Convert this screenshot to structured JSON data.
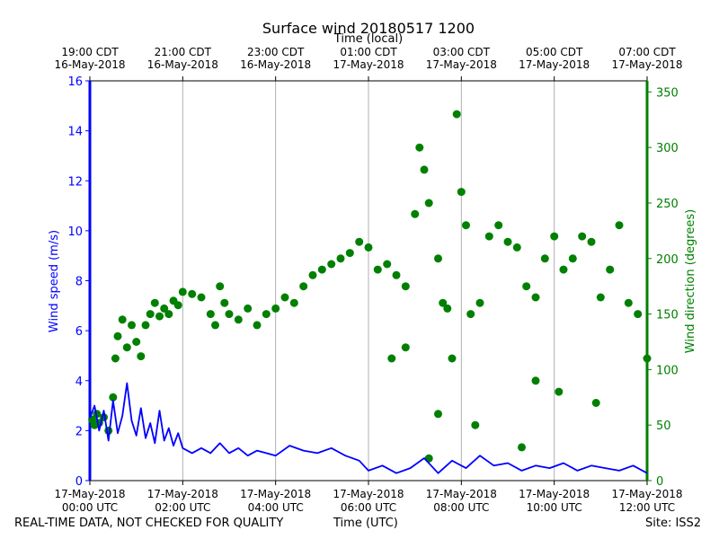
{
  "chart_data": {
    "type": "line+scatter",
    "title": "Surface wind 20180517 1200",
    "top_axis_label": "Time (local)",
    "xlabel": "Time (UTC)",
    "ylabel_left": "Wind speed (m/s)",
    "ylabel_right": "Wind direction (degrees)",
    "x_range_hours_utc": [
      0,
      12
    ],
    "ylim_left": [
      0,
      16
    ],
    "ylim_right": [
      0,
      360
    ],
    "left_ticks": [
      "0",
      "2",
      "4",
      "6",
      "8",
      "10",
      "12",
      "14",
      "16"
    ],
    "right_ticks": [
      "0",
      "50",
      "100",
      "150",
      "200",
      "250",
      "300",
      "350"
    ],
    "bottom_ticks": [
      {
        "line1": "17-May-2018",
        "line2": "00:00 UTC"
      },
      {
        "line1": "17-May-2018",
        "line2": "02:00 UTC"
      },
      {
        "line1": "17-May-2018",
        "line2": "04:00 UTC"
      },
      {
        "line1": "17-May-2018",
        "line2": "06:00 UTC"
      },
      {
        "line1": "17-May-2018",
        "line2": "08:00 UTC"
      },
      {
        "line1": "17-May-2018",
        "line2": "10:00 UTC"
      },
      {
        "line1": "17-May-2018",
        "line2": "12:00 UTC"
      }
    ],
    "top_ticks": [
      {
        "line1": "19:00 CDT",
        "line2": "16-May-2018"
      },
      {
        "line1": "21:00 CDT",
        "line2": "16-May-2018"
      },
      {
        "line1": "23:00 CDT",
        "line2": "16-May-2018"
      },
      {
        "line1": "01:00 CDT",
        "line2": "17-May-2018"
      },
      {
        "line1": "03:00 CDT",
        "line2": "17-May-2018"
      },
      {
        "line1": "05:00 CDT",
        "line2": "17-May-2018"
      },
      {
        "line1": "07:00 CDT",
        "line2": "17-May-2018"
      }
    ],
    "grid": "vertical",
    "series": [
      {
        "name": "Wind speed",
        "axis": "left",
        "style": "line",
        "color": "#0000ff",
        "points": [
          [
            0.0,
            2.5
          ],
          [
            0.1,
            3.0
          ],
          [
            0.2,
            2.0
          ],
          [
            0.3,
            2.8
          ],
          [
            0.4,
            1.6
          ],
          [
            0.5,
            3.2
          ],
          [
            0.6,
            1.9
          ],
          [
            0.7,
            2.6
          ],
          [
            0.8,
            3.9
          ],
          [
            0.9,
            2.4
          ],
          [
            1.0,
            1.8
          ],
          [
            1.1,
            2.9
          ],
          [
            1.2,
            1.7
          ],
          [
            1.3,
            2.3
          ],
          [
            1.4,
            1.5
          ],
          [
            1.5,
            2.8
          ],
          [
            1.6,
            1.6
          ],
          [
            1.7,
            2.1
          ],
          [
            1.8,
            1.4
          ],
          [
            1.9,
            1.9
          ],
          [
            2.0,
            1.3
          ],
          [
            2.2,
            1.1
          ],
          [
            2.4,
            1.3
          ],
          [
            2.6,
            1.1
          ],
          [
            2.8,
            1.5
          ],
          [
            3.0,
            1.1
          ],
          [
            3.2,
            1.3
          ],
          [
            3.4,
            1.0
          ],
          [
            3.6,
            1.2
          ],
          [
            3.8,
            1.1
          ],
          [
            4.0,
            1.0
          ],
          [
            4.3,
            1.4
          ],
          [
            4.6,
            1.2
          ],
          [
            4.9,
            1.1
          ],
          [
            5.2,
            1.3
          ],
          [
            5.5,
            1.0
          ],
          [
            5.8,
            0.8
          ],
          [
            6.0,
            0.4
          ],
          [
            6.3,
            0.6
          ],
          [
            6.6,
            0.3
          ],
          [
            6.9,
            0.5
          ],
          [
            7.2,
            0.9
          ],
          [
            7.5,
            0.3
          ],
          [
            7.8,
            0.8
          ],
          [
            8.1,
            0.5
          ],
          [
            8.4,
            1.0
          ],
          [
            8.7,
            0.6
          ],
          [
            9.0,
            0.7
          ],
          [
            9.3,
            0.4
          ],
          [
            9.6,
            0.6
          ],
          [
            9.9,
            0.5
          ],
          [
            10.2,
            0.7
          ],
          [
            10.5,
            0.4
          ],
          [
            10.8,
            0.6
          ],
          [
            11.1,
            0.5
          ],
          [
            11.4,
            0.4
          ],
          [
            11.7,
            0.6
          ],
          [
            12.0,
            0.3
          ]
        ]
      },
      {
        "name": "Wind direction",
        "axis": "right",
        "style": "scatter",
        "color": "#008000",
        "points": [
          [
            0.05,
            55
          ],
          [
            0.1,
            50
          ],
          [
            0.15,
            60
          ],
          [
            0.2,
            52
          ],
          [
            0.3,
            57
          ],
          [
            0.4,
            45
          ],
          [
            0.5,
            75
          ],
          [
            0.55,
            110
          ],
          [
            0.6,
            130
          ],
          [
            0.7,
            145
          ],
          [
            0.8,
            120
          ],
          [
            0.9,
            140
          ],
          [
            1.0,
            125
          ],
          [
            1.1,
            112
          ],
          [
            1.2,
            140
          ],
          [
            1.3,
            150
          ],
          [
            1.4,
            160
          ],
          [
            1.5,
            148
          ],
          [
            1.6,
            155
          ],
          [
            1.7,
            150
          ],
          [
            1.8,
            162
          ],
          [
            1.9,
            158
          ],
          [
            2.0,
            170
          ],
          [
            2.2,
            168
          ],
          [
            2.4,
            165
          ],
          [
            2.6,
            150
          ],
          [
            2.7,
            140
          ],
          [
            2.8,
            175
          ],
          [
            2.9,
            160
          ],
          [
            3.0,
            150
          ],
          [
            3.2,
            145
          ],
          [
            3.4,
            155
          ],
          [
            3.6,
            140
          ],
          [
            3.8,
            150
          ],
          [
            4.0,
            155
          ],
          [
            4.2,
            165
          ],
          [
            4.4,
            160
          ],
          [
            4.6,
            175
          ],
          [
            4.8,
            185
          ],
          [
            5.0,
            190
          ],
          [
            5.2,
            195
          ],
          [
            5.4,
            200
          ],
          [
            5.6,
            205
          ],
          [
            5.8,
            215
          ],
          [
            6.0,
            210
          ],
          [
            6.2,
            190
          ],
          [
            6.4,
            195
          ],
          [
            6.6,
            185
          ],
          [
            6.8,
            175
          ],
          [
            7.0,
            240
          ],
          [
            7.1,
            300
          ],
          [
            7.2,
            280
          ],
          [
            7.3,
            250
          ],
          [
            7.5,
            200
          ],
          [
            7.7,
            155
          ],
          [
            7.8,
            110
          ],
          [
            7.9,
            330
          ],
          [
            8.0,
            260
          ],
          [
            8.1,
            230
          ],
          [
            8.2,
            150
          ],
          [
            8.4,
            160
          ],
          [
            8.6,
            220
          ],
          [
            8.8,
            230
          ],
          [
            9.0,
            215
          ],
          [
            9.2,
            210
          ],
          [
            9.4,
            175
          ],
          [
            9.6,
            165
          ],
          [
            9.8,
            200
          ],
          [
            10.0,
            220
          ],
          [
            10.2,
            190
          ],
          [
            10.4,
            200
          ],
          [
            10.6,
            220
          ],
          [
            10.8,
            215
          ],
          [
            11.0,
            165
          ],
          [
            11.2,
            190
          ],
          [
            11.4,
            230
          ],
          [
            11.6,
            160
          ],
          [
            11.8,
            150
          ],
          [
            12.0,
            110
          ],
          [
            6.5,
            110
          ],
          [
            6.8,
            120
          ],
          [
            7.6,
            160
          ],
          [
            7.3,
            20
          ],
          [
            7.5,
            60
          ],
          [
            8.3,
            50
          ],
          [
            9.3,
            30
          ],
          [
            9.6,
            90
          ],
          [
            10.1,
            80
          ],
          [
            10.9,
            70
          ]
        ]
      }
    ]
  },
  "footer": {
    "left": "REAL-TIME DATA, NOT CHECKED FOR QUALITY",
    "center": "Time (UTC)",
    "right": "Site: ISS2"
  },
  "colors": {
    "speed": "#0000ff",
    "direction": "#008000",
    "grid": "#b0b0b0"
  }
}
